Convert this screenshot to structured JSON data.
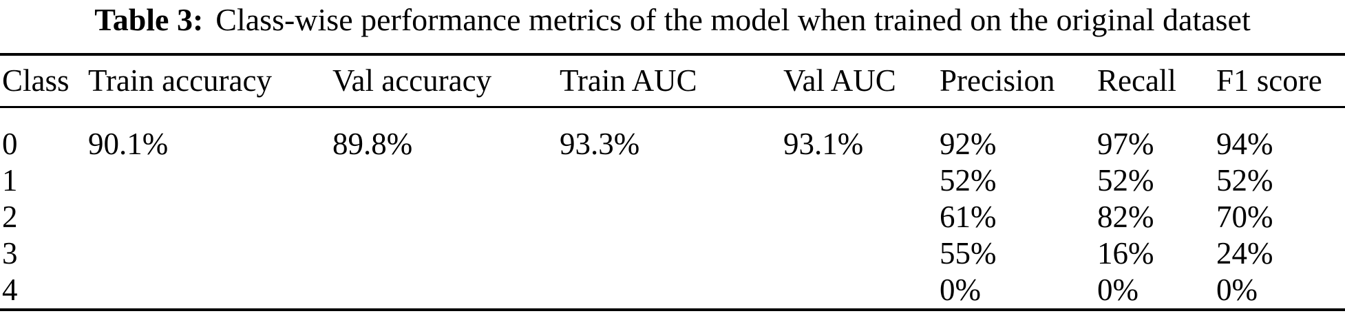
{
  "title": {
    "label": "Table 3:",
    "text": "Class-wise performance metrics of the model when trained on the original dataset"
  },
  "table": {
    "headers": [
      "Class",
      "Train accuracy",
      "Val accuracy",
      "Train AUC",
      "Val AUC",
      "Precision",
      "Recall",
      "F1 score"
    ],
    "rows": [
      [
        "0",
        "90.1%",
        "89.8%",
        "93.3%",
        "93.1%",
        "92%",
        "97%",
        "94%"
      ],
      [
        "1",
        "",
        "",
        "",
        "",
        "52%",
        "52%",
        "52%"
      ],
      [
        "2",
        "",
        "",
        "",
        "",
        "61%",
        "82%",
        "70%"
      ],
      [
        "3",
        "",
        "",
        "",
        "",
        "55%",
        "16%",
        "24%"
      ],
      [
        "4",
        "",
        "",
        "",
        "",
        "0%",
        "0%",
        "0%"
      ]
    ]
  },
  "chart_data": {
    "type": "table",
    "title": "Table 3: Class-wise performance metrics of the model when trained on the original dataset",
    "columns": [
      "Class",
      "Train accuracy",
      "Val accuracy",
      "Train AUC",
      "Val AUC",
      "Precision",
      "Recall",
      "F1 score"
    ],
    "rows": [
      {
        "class": "0",
        "train_accuracy": "90.1%",
        "val_accuracy": "89.8%",
        "train_auc": "93.3%",
        "val_auc": "93.1%",
        "precision": "92%",
        "recall": "97%",
        "f1_score": "94%"
      },
      {
        "class": "1",
        "train_accuracy": "",
        "val_accuracy": "",
        "train_auc": "",
        "val_auc": "",
        "precision": "52%",
        "recall": "52%",
        "f1_score": "52%"
      },
      {
        "class": "2",
        "train_accuracy": "",
        "val_accuracy": "",
        "train_auc": "",
        "val_auc": "",
        "precision": "61%",
        "recall": "82%",
        "f1_score": "70%"
      },
      {
        "class": "3",
        "train_accuracy": "",
        "val_accuracy": "",
        "train_auc": "",
        "val_auc": "",
        "precision": "55%",
        "recall": "16%",
        "f1_score": "24%"
      },
      {
        "class": "4",
        "train_accuracy": "",
        "val_accuracy": "",
        "train_auc": "",
        "val_auc": "",
        "precision": "0%",
        "recall": "0%",
        "f1_score": "0%"
      }
    ]
  },
  "colors": {
    "text": "#000000",
    "background": "#ffffff",
    "rule": "#000000"
  }
}
